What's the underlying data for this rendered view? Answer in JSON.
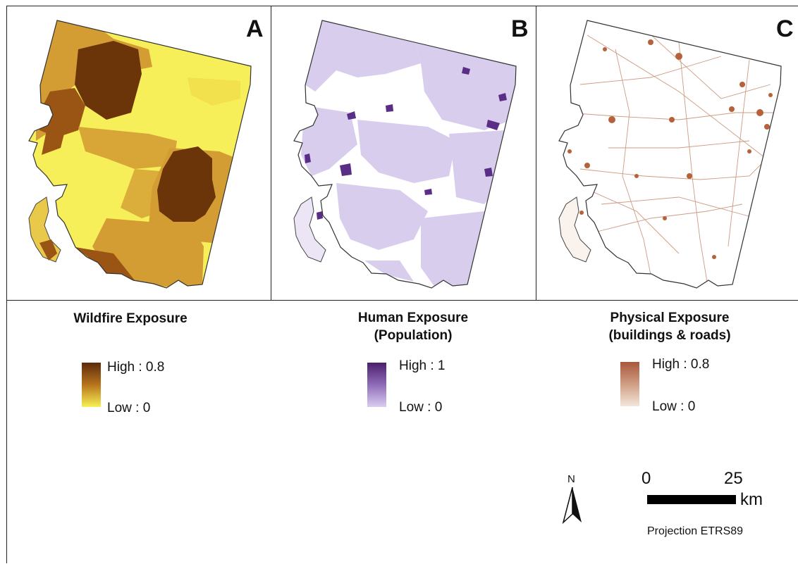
{
  "panels": [
    {
      "label": "A",
      "legend_title": "Wildfire Exposure",
      "high": "High : 0.8",
      "low": "Low : 0",
      "ramp_colors": [
        "#5c2a0c",
        "#b8741c",
        "#f6f155"
      ]
    },
    {
      "label": "B",
      "legend_title_line1": "Human Exposure",
      "legend_title_line2": "(Population)",
      "high": "High : 1",
      "low": "Low : 0",
      "ramp_colors": [
        "#4a1f6e",
        "#8f6cb8",
        "#d9cdf0"
      ]
    },
    {
      "label": "C",
      "legend_title_line1": "Physical Exposure",
      "legend_title_line2": "(buildings & roads)",
      "high": "High : 0.8",
      "low": "Low : 0",
      "ramp_colors": [
        "#a9573a",
        "#cf9e84",
        "#f4e6da"
      ]
    }
  ],
  "north_arrow": {
    "letter": "N"
  },
  "scale_bar": {
    "start": "0",
    "end": "25",
    "unit": "km"
  },
  "projection": "Projection ETRS89",
  "colors": {
    "wildfire_high": "#6b3409",
    "wildfire_mid": "#cf9a2e",
    "wildfire_low": "#f7ef5a",
    "human_low": "#d9cdee",
    "human_high": "#5a2e86",
    "physical": "#b5623b"
  }
}
